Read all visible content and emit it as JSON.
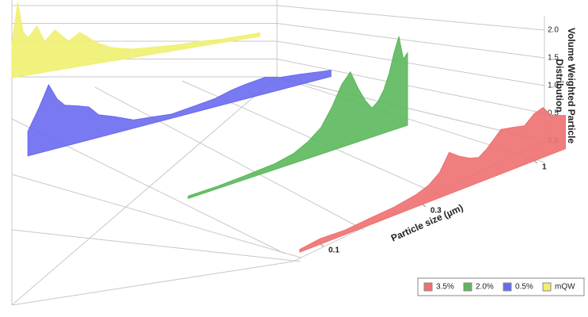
{
  "chart_data": {
    "type": "3d-area",
    "xlabel": "Particle size (µm)",
    "zlabel": "Volume Weighted Particle Distribution",
    "xscale": "log",
    "xticks": [
      0.1,
      0.3,
      1
    ],
    "zlim": [
      0,
      2.2
    ],
    "zticks": [
      {
        "value": 0,
        "label": "0.0"
      },
      {
        "value": 0.5,
        "label": "0.5"
      },
      {
        "value": 1,
        "label": "1.0"
      },
      {
        "value": 1.5,
        "label": "1.5"
      },
      {
        "value": 2,
        "label": "2.0"
      }
    ],
    "legend": "bottom-right",
    "series": [
      {
        "name": "3.5%",
        "color": "#f07070",
        "x": [
          0.08,
          0.1,
          0.13,
          0.17,
          0.22,
          0.28,
          0.32,
          0.36,
          0.4,
          0.45,
          0.5,
          0.55,
          0.6,
          0.7,
          0.8,
          0.9,
          1.0,
          1.1,
          1.2,
          1.4
        ],
        "values": [
          0.05,
          0.1,
          0.08,
          0.12,
          0.15,
          0.22,
          0.3,
          0.45,
          0.75,
          0.6,
          0.5,
          0.45,
          0.55,
          0.8,
          0.75,
          0.7,
          0.85,
          0.9,
          0.7,
          0.6
        ]
      },
      {
        "name": "2.0%",
        "color": "#5cb85c",
        "x": [
          0.07,
          0.1,
          0.14,
          0.2,
          0.25,
          0.3,
          0.35,
          0.4,
          0.45,
          0.5,
          0.55,
          0.6,
          0.65,
          0.7,
          0.75,
          0.8,
          0.85,
          0.9,
          0.95,
          1.0
        ],
        "values": [
          0.05,
          0.05,
          0.08,
          0.12,
          0.2,
          0.35,
          0.55,
          0.9,
          1.3,
          1.5,
          1.1,
          0.8,
          0.6,
          0.7,
          0.9,
          1.2,
          1.6,
          1.9,
          1.4,
          1.5
        ]
      },
      {
        "name": "0.5%",
        "color": "#6a6af0",
        "x": [
          0.03,
          0.035,
          0.04,
          0.045,
          0.05,
          0.06,
          0.07,
          0.08,
          0.1,
          0.13,
          0.17,
          0.22,
          0.3,
          0.4,
          0.5,
          0.6,
          0.8,
          1.0,
          1.3,
          1.6,
          2.0
        ],
        "values": [
          0.6,
          1.1,
          1.6,
          1.2,
          1.0,
          0.9,
          0.8,
          0.55,
          0.4,
          0.2,
          0.15,
          0.1,
          0.15,
          0.2,
          0.3,
          0.35,
          0.4,
          0.3,
          0.25,
          0.2,
          0.15
        ]
      },
      {
        "name": "mQW",
        "color": "#f0f070",
        "x": [
          0.1,
          0.11,
          0.12,
          0.13,
          0.15,
          0.17,
          0.2,
          0.25,
          0.3,
          0.4,
          0.5,
          0.7,
          1.0,
          1.5,
          2,
          3,
          4,
          5.5
        ],
        "values": [
          1.0,
          2.2,
          1.3,
          1.1,
          1.4,
          0.9,
          1.2,
          0.8,
          1.0,
          0.6,
          0.4,
          0.25,
          0.2,
          0.15,
          0.15,
          0.1,
          0.1,
          0.1
        ]
      }
    ]
  }
}
